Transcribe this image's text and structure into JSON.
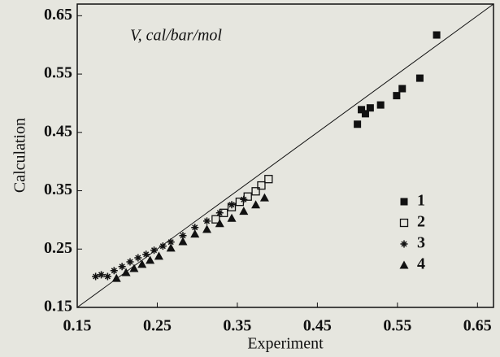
{
  "chart_data": {
    "type": "scatter",
    "annotation": "V, cal/bar/mol",
    "x_label": "Experiment",
    "y_label": "Calculation",
    "xlim": [
      0.15,
      0.67
    ],
    "ylim": [
      0.15,
      0.67
    ],
    "xticks": [
      0.15,
      0.25,
      0.35,
      0.45,
      0.55,
      0.65
    ],
    "yticks": [
      0.15,
      0.25,
      0.35,
      0.45,
      0.55,
      0.65
    ],
    "legend": "right",
    "series": [
      {
        "name": "1",
        "color": "#111111",
        "marker": "square-filled",
        "x": [
          0.5,
          0.505,
          0.51,
          0.516,
          0.529,
          0.549,
          0.556,
          0.578,
          0.599
        ],
        "values": [
          0.464,
          0.489,
          0.482,
          0.492,
          0.497,
          0.513,
          0.525,
          0.543,
          0.617
        ]
      },
      {
        "name": "2",
        "color": "#111111",
        "marker": "square-open",
        "x": [
          0.323,
          0.333,
          0.343,
          0.353,
          0.363,
          0.373,
          0.38,
          0.389
        ],
        "values": [
          0.301,
          0.312,
          0.322,
          0.331,
          0.34,
          0.349,
          0.359,
          0.37
        ]
      },
      {
        "name": "3",
        "color": "#111111",
        "marker": "star",
        "x": [
          0.173,
          0.18,
          0.188,
          0.196,
          0.206,
          0.216,
          0.226,
          0.236,
          0.246,
          0.257,
          0.267,
          0.282,
          0.297,
          0.312,
          0.328,
          0.343,
          0.358
        ],
        "values": [
          0.203,
          0.206,
          0.203,
          0.213,
          0.22,
          0.228,
          0.235,
          0.241,
          0.248,
          0.255,
          0.262,
          0.273,
          0.287,
          0.298,
          0.312,
          0.326,
          0.335
        ]
      },
      {
        "name": "4",
        "color": "#111111",
        "marker": "triangle",
        "x": [
          0.199,
          0.211,
          0.221,
          0.231,
          0.241,
          0.252,
          0.267,
          0.282,
          0.297,
          0.312,
          0.328,
          0.343,
          0.358,
          0.373,
          0.384
        ],
        "values": [
          0.2,
          0.21,
          0.217,
          0.224,
          0.231,
          0.238,
          0.252,
          0.263,
          0.276,
          0.284,
          0.294,
          0.303,
          0.315,
          0.326,
          0.338
        ]
      }
    ]
  }
}
